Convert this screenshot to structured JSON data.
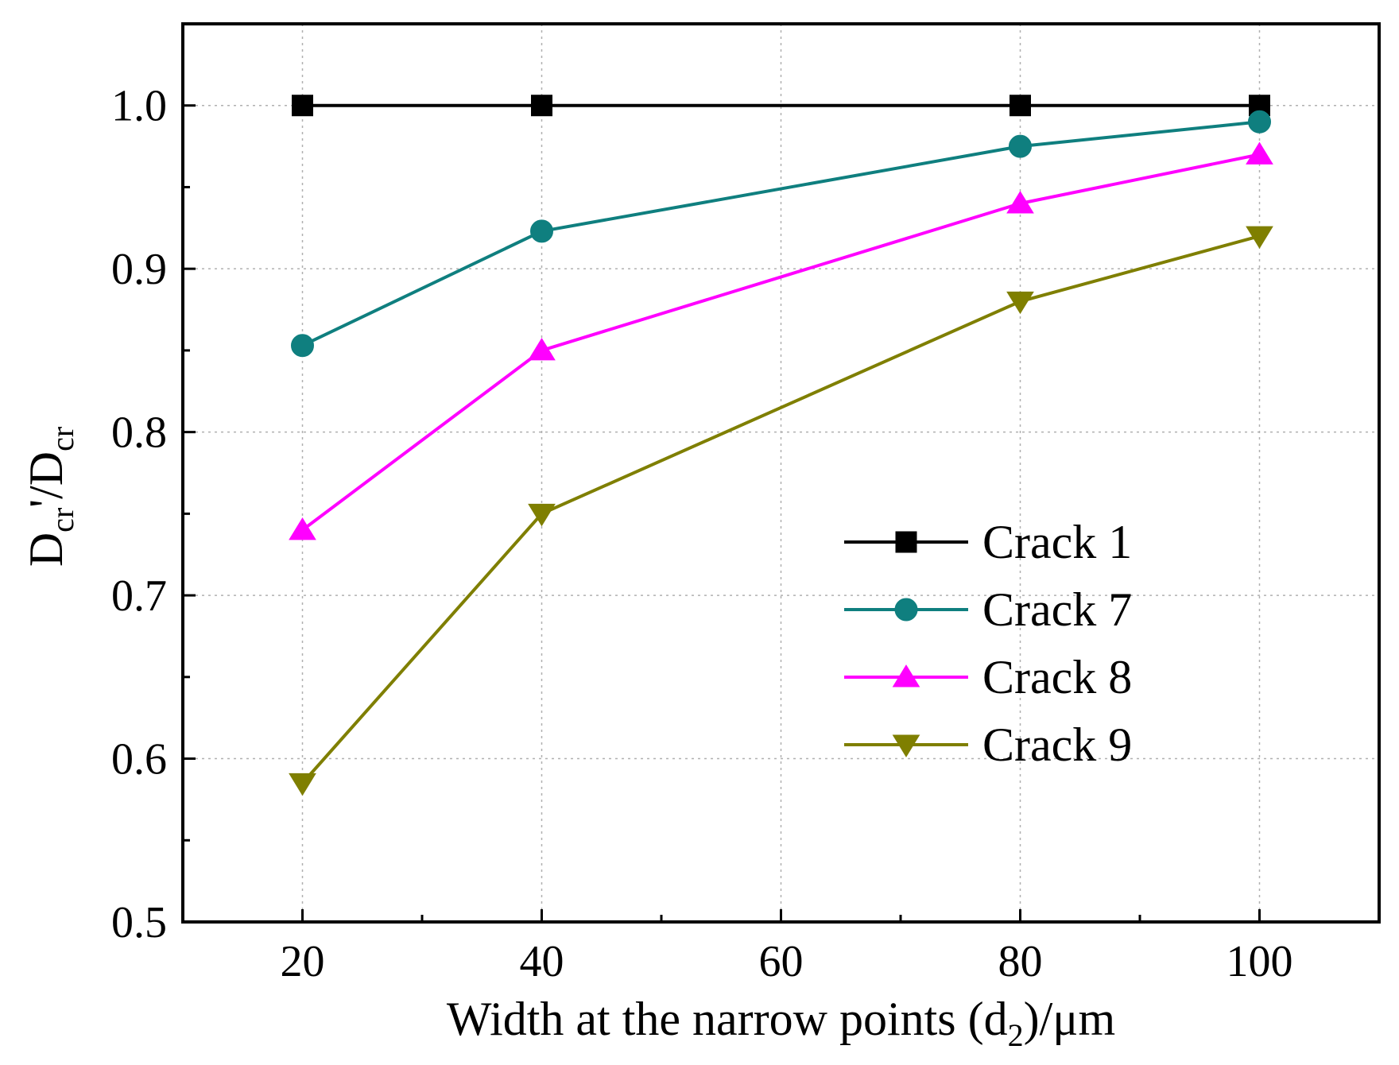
{
  "chart_data": {
    "type": "line",
    "title": "",
    "xlabel": "Width at the narrow points (d",
    "xlabel_sub": "2",
    "xlabel_tail": ")/μm",
    "ylabel": {
      "main": "D",
      "sub1": "cr",
      "mid": "'/D",
      "sub2": "cr"
    },
    "xlim": [
      10,
      110
    ],
    "ylim": [
      0.5,
      1.05
    ],
    "x_ticks": [
      20,
      40,
      60,
      80,
      100
    ],
    "x_tick_labels": [
      "20",
      "40",
      "60",
      "80",
      "100"
    ],
    "x_minor_ticks": [
      30,
      50,
      70,
      90
    ],
    "y_ticks": [
      0.5,
      0.6,
      0.7,
      0.8,
      0.9,
      1.0
    ],
    "y_tick_labels": [
      "0.5",
      "0.6",
      "0.7",
      "0.8",
      "0.9",
      "1.0"
    ],
    "y_minor_ticks": [
      0.55,
      0.65,
      0.75,
      0.85,
      0.95
    ],
    "grid": true,
    "legend_position": "lower-right",
    "x": [
      20,
      40,
      80,
      100
    ],
    "series": [
      {
        "name": "Crack 1",
        "values": [
          1.0,
          1.0,
          1.0,
          1.0
        ],
        "color": "#000000",
        "marker": "square"
      },
      {
        "name": "Crack 7",
        "values": [
          0.853,
          0.923,
          0.975,
          0.99
        ],
        "color": "#0f7f7f",
        "marker": "circle"
      },
      {
        "name": "Crack 8",
        "values": [
          0.74,
          0.85,
          0.94,
          0.97
        ],
        "color": "#ff00ff",
        "marker": "triangle-up"
      },
      {
        "name": "Crack 9",
        "values": [
          0.585,
          0.75,
          0.88,
          0.92
        ],
        "color": "#7f7f00",
        "marker": "triangle-down"
      }
    ]
  }
}
